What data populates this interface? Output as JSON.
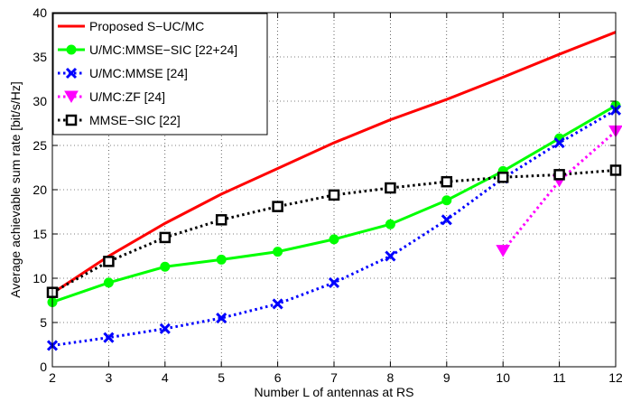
{
  "chart_data": {
    "type": "line",
    "xlabel": "Number L of antennas at RS",
    "ylabel": "Average achievable sum rate [bit/s/Hz]",
    "xlim": [
      2,
      12
    ],
    "ylim": [
      0,
      40
    ],
    "xticks": [
      2,
      3,
      4,
      5,
      6,
      7,
      8,
      9,
      10,
      11,
      12
    ],
    "yticks": [
      0,
      5,
      10,
      15,
      20,
      25,
      30,
      35,
      40
    ],
    "grid": true,
    "legend_position": "top-left",
    "series": [
      {
        "name": "Proposed S−UC/MC",
        "color": "#ff0000",
        "line": "solid",
        "marker": "none",
        "x": [
          2,
          3,
          4,
          5,
          6,
          7,
          8,
          9,
          10,
          11,
          12
        ],
        "y": [
          8.3,
          12.5,
          16.2,
          19.5,
          22.4,
          25.3,
          27.9,
          30.2,
          32.7,
          35.3,
          37.8
        ]
      },
      {
        "name": "U/MC:MMSE−SIC [22+24]",
        "color": "#00ff00",
        "line": "solid",
        "marker": "circle",
        "x": [
          2,
          3,
          4,
          5,
          6,
          7,
          8,
          9,
          10,
          11,
          12
        ],
        "y": [
          7.3,
          9.5,
          11.3,
          12.1,
          13.0,
          14.4,
          16.1,
          18.8,
          22.1,
          25.8,
          29.5
        ]
      },
      {
        "name": "U/MC:MMSE [24]",
        "color": "#0000ff",
        "line": "dotted",
        "marker": "x",
        "x": [
          2,
          3,
          4,
          5,
          6,
          7,
          8,
          9,
          10,
          11,
          12
        ],
        "y": [
          2.4,
          3.3,
          4.3,
          5.5,
          7.1,
          9.5,
          12.5,
          16.6,
          21.3,
          25.3,
          29.0
        ]
      },
      {
        "name": "U/MC:ZF [24]",
        "color": "#ff00ff",
        "line": "dotted",
        "marker": "triangle-down",
        "x": [
          10,
          11,
          12
        ],
        "y": [
          13.1,
          21.0,
          26.6
        ]
      },
      {
        "name": "MMSE−SIC [22]",
        "color": "#000000",
        "line": "dotted",
        "marker": "square",
        "x": [
          2,
          3,
          4,
          5,
          6,
          7,
          8,
          9,
          10,
          11,
          12
        ],
        "y": [
          8.4,
          11.9,
          14.6,
          16.6,
          18.1,
          19.4,
          20.2,
          20.9,
          21.4,
          21.7,
          22.2
        ]
      }
    ]
  }
}
